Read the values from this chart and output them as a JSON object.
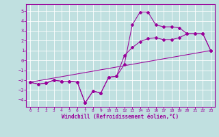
{
  "xlabel": "Windchill (Refroidissement éolien,°C)",
  "background_color": "#c0e0e0",
  "grid_color": "#ffffff",
  "line_color": "#990099",
  "xlim": [
    -0.5,
    23.5
  ],
  "ylim": [
    -4.7,
    5.7
  ],
  "yticks": [
    -4,
    -3,
    -2,
    -1,
    0,
    1,
    2,
    3,
    4,
    5
  ],
  "xticks": [
    0,
    1,
    2,
    3,
    4,
    5,
    6,
    7,
    8,
    9,
    10,
    11,
    12,
    13,
    14,
    15,
    16,
    17,
    18,
    19,
    20,
    21,
    22,
    23
  ],
  "line1_x": [
    0,
    1,
    2,
    3,
    4,
    5,
    6,
    7,
    8,
    9,
    10,
    11,
    12,
    13,
    14,
    15,
    16,
    17,
    18,
    19,
    20,
    21,
    22,
    23
  ],
  "line1_y": [
    -2.2,
    -2.4,
    -2.3,
    -2.0,
    -2.1,
    -2.1,
    -2.2,
    -4.3,
    -3.1,
    -3.3,
    -1.7,
    -1.6,
    -0.4,
    3.6,
    4.9,
    4.9,
    3.6,
    3.4,
    3.4,
    3.3,
    2.7,
    2.7,
    2.7,
    1.0
  ],
  "line2_x": [
    0,
    1,
    2,
    3,
    4,
    5,
    6,
    7,
    8,
    9,
    10,
    11,
    12,
    13,
    14,
    15,
    16,
    17,
    18,
    19,
    20,
    21,
    22,
    23
  ],
  "line2_y": [
    -2.2,
    -2.4,
    -2.3,
    -2.0,
    -2.1,
    -2.1,
    -2.2,
    -4.3,
    -3.1,
    -3.3,
    -1.7,
    -1.6,
    0.5,
    1.3,
    1.9,
    2.2,
    2.3,
    2.1,
    2.1,
    2.3,
    2.7,
    2.7,
    2.7,
    1.0
  ],
  "line3_x": [
    0,
    23
  ],
  "line3_y": [
    -2.2,
    1.0
  ]
}
